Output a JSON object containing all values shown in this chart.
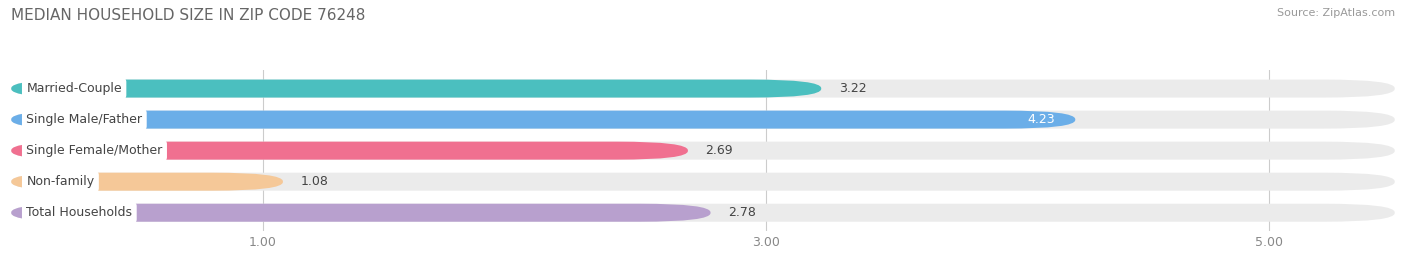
{
  "title": "MEDIAN HOUSEHOLD SIZE IN ZIP CODE 76248",
  "source": "Source: ZipAtlas.com",
  "categories": [
    "Married-Couple",
    "Single Male/Father",
    "Single Female/Mother",
    "Non-family",
    "Total Households"
  ],
  "values": [
    3.22,
    4.23,
    2.69,
    1.08,
    2.78
  ],
  "bar_colors": [
    "#4BBFBF",
    "#6BAEE8",
    "#F07090",
    "#F5C898",
    "#B8A0CE"
  ],
  "xlim": [
    0.0,
    5.5
  ],
  "xticks": [
    1.0,
    3.0,
    5.0
  ],
  "background_color": "#ffffff",
  "bar_bg_color": "#ebebeb",
  "title_fontsize": 11,
  "source_fontsize": 8,
  "label_fontsize": 9,
  "value_fontsize": 9,
  "tick_fontsize": 9,
  "bar_height": 0.58
}
